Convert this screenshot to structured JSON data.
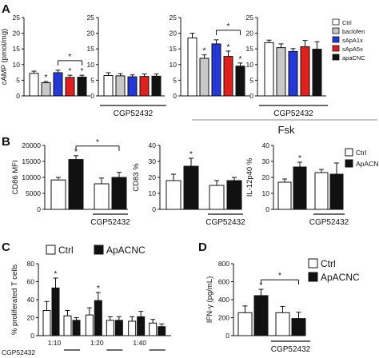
{
  "panels": {
    "A": "A",
    "B": "B",
    "C": "C",
    "D": "D"
  },
  "fsk_label": "Fsk",
  "chart_data": [
    {
      "id": "A1",
      "type": "bar",
      "ylabel": "cAMP (pmol/mg)",
      "ylim": [
        0,
        25
      ],
      "yticks": [
        0,
        5,
        10,
        15,
        20,
        25
      ],
      "series": [
        {
          "name": "Ctrl",
          "color": "#ffffff"
        },
        {
          "name": "baclofen",
          "color": "#c8c8c8"
        },
        {
          "name": "sApA1x",
          "color": "#2438d8"
        },
        {
          "name": "sApA5x",
          "color": "#e0201c"
        },
        {
          "name": "apaCNC",
          "color": "#111111"
        }
      ],
      "values": [
        7.2,
        4.2,
        7.4,
        5.9,
        6.0
      ],
      "errors": [
        0.7,
        0.4,
        0.8,
        0.7,
        0.6
      ],
      "stars": [
        "",
        "*",
        "",
        "*",
        "*"
      ],
      "brackets": [
        {
          "from": 2,
          "to": 4,
          "label": "*"
        }
      ],
      "group_label": ""
    },
    {
      "id": "A2",
      "type": "bar",
      "ylim": [
        0,
        25
      ],
      "yticks": [
        0,
        5,
        10,
        15,
        20,
        25
      ],
      "values": [
        6.5,
        6.4,
        6.1,
        6.2,
        6.3
      ],
      "errors": [
        0.9,
        0.7,
        0.6,
        0.8,
        0.7
      ],
      "stars": [
        "",
        "",
        "",
        "",
        ""
      ],
      "group_label": "CGP52432"
    },
    {
      "id": "A3",
      "type": "bar",
      "ylim": [
        0,
        25
      ],
      "yticks": [
        0,
        5,
        10,
        15,
        20,
        25
      ],
      "values": [
        18.5,
        12.0,
        16.6,
        12.6,
        9.5
      ],
      "errors": [
        1.5,
        1.1,
        1.3,
        1.7,
        1.0
      ],
      "stars": [
        "",
        "*",
        "",
        "*",
        "*"
      ],
      "brackets": [
        {
          "from": 2,
          "to": 4,
          "label": "*"
        }
      ],
      "group_label": ""
    },
    {
      "id": "A4",
      "type": "bar",
      "ylim": [
        0,
        25
      ],
      "yticks": [
        0,
        5,
        10,
        15,
        20,
        25
      ],
      "values": [
        17.0,
        15.4,
        14.2,
        15.7,
        14.9
      ],
      "errors": [
        0.8,
        1.2,
        0.9,
        2.0,
        2.4
      ],
      "stars": [
        "",
        "",
        "",
        "",
        ""
      ],
      "group_label": "CGP52432"
    },
    {
      "id": "B1",
      "type": "bar",
      "ylabel": "CD86 MFI",
      "ylim": [
        0,
        20000
      ],
      "yticks": [
        0,
        5000,
        10000,
        15000,
        20000
      ],
      "values": [
        9200,
        15600,
        8000,
        10000
      ],
      "errors": [
        800,
        1200,
        1800,
        1600
      ],
      "fills": [
        "#ffffff",
        "#111111",
        "#ffffff",
        "#111111"
      ],
      "stars": [
        "",
        "*",
        "",
        ""
      ],
      "brackets": [
        {
          "from": 1,
          "to": 3,
          "label": "*"
        }
      ],
      "group_label": "CGP52432"
    },
    {
      "id": "B2",
      "type": "bar",
      "ylabel": "CD83 %",
      "ylim": [
        0,
        40
      ],
      "yticks": [
        0,
        10,
        20,
        30,
        40
      ],
      "values": [
        18,
        27,
        15,
        18
      ],
      "errors": [
        4,
        5,
        3,
        2
      ],
      "fills": [
        "#ffffff",
        "#111111",
        "#ffffff",
        "#111111"
      ],
      "stars": [
        "",
        "*",
        "",
        ""
      ],
      "group_label": "CGP52432"
    },
    {
      "id": "B3",
      "type": "bar",
      "ylabel": "IL-12p40 %",
      "ylim": [
        0,
        40
      ],
      "yticks": [
        0,
        10,
        20,
        30,
        40
      ],
      "values": [
        17,
        26.5,
        23,
        22
      ],
      "errors": [
        2,
        3,
        2,
        7
      ],
      "fills": [
        "#ffffff",
        "#111111",
        "#ffffff",
        "#111111"
      ],
      "stars": [
        "",
        "*",
        "",
        ""
      ],
      "group_label": "CGP52432"
    },
    {
      "id": "C",
      "type": "bar",
      "ylabel": "% proliferated T cells",
      "ylim": [
        0,
        80
      ],
      "yticks": [
        0,
        20,
        40,
        60,
        80
      ],
      "categories": [
        "1:10",
        "1:20",
        "1:40"
      ],
      "values": [
        [
          28,
          53,
          22,
          17
        ],
        [
          23,
          39,
          17,
          17
        ],
        [
          16,
          21,
          14,
          10
        ]
      ],
      "errors": [
        [
          10,
          11,
          6,
          3
        ],
        [
          8,
          9,
          4,
          4
        ],
        [
          5,
          6,
          4,
          3
        ]
      ],
      "fills": [
        "#ffffff",
        "#111111",
        "#ffffff",
        "#111111"
      ],
      "stars": [
        [
          "",
          "*",
          "",
          ""
        ],
        [
          "",
          "*",
          "",
          ""
        ],
        [
          "",
          "",
          "",
          ""
        ]
      ],
      "group_label": "CGP52432",
      "legend": [
        {
          "name": "Ctrl",
          "color": "#ffffff"
        },
        {
          "name": "ApACNC",
          "color": "#111111"
        }
      ]
    },
    {
      "id": "D",
      "type": "bar",
      "ylabel": "IFN-γ (pg/mL)",
      "ylim": [
        0,
        800
      ],
      "yticks": [
        0,
        200,
        400,
        600,
        800
      ],
      "values": [
        255,
        445,
        255,
        190
      ],
      "errors": [
        75,
        70,
        70,
        70
      ],
      "fills": [
        "#ffffff",
        "#111111",
        "#ffffff",
        "#111111"
      ],
      "stars": [
        "",
        "*",
        "",
        ""
      ],
      "brackets": [
        {
          "from": 1,
          "to": 3,
          "label": "*"
        }
      ],
      "group_label": "CGP52432",
      "legend": [
        {
          "name": "Ctrl",
          "color": "#ffffff"
        },
        {
          "name": "ApACNC",
          "color": "#111111"
        }
      ]
    }
  ],
  "legend_b": [
    {
      "name": "Ctrl",
      "color": "#ffffff"
    },
    {
      "name": "ApACNC",
      "color": "#111111"
    }
  ]
}
